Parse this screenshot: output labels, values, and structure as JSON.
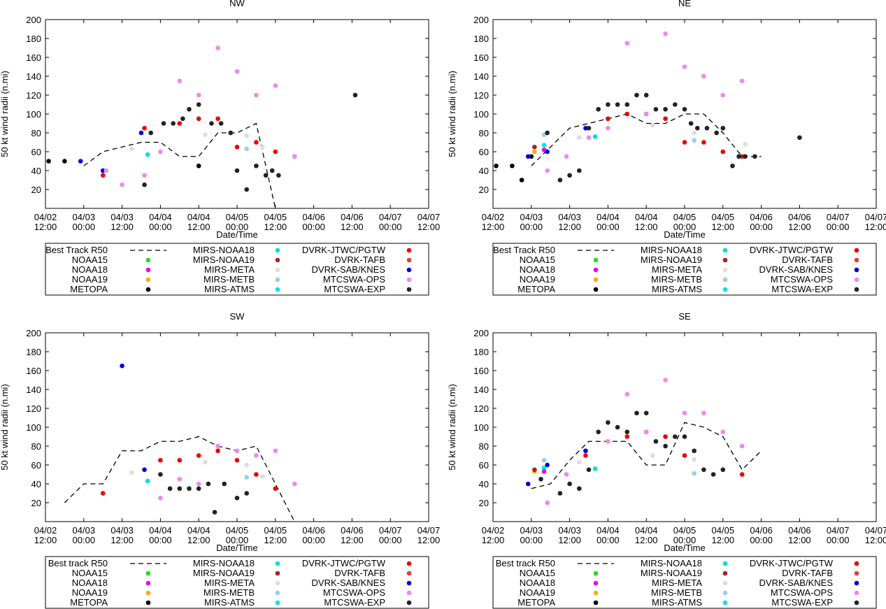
{
  "figure": {
    "x_ticks": [
      "04/02\n12:00",
      "04/03\n00:00",
      "04/03\n12:00",
      "04/04\n00:00",
      "04/04\n12:00",
      "04/05\n00:00",
      "04/05\n12:00",
      "04/06\n00:00",
      "04/06\n12:00",
      "04/07\n00:00",
      "04/07\n12:00"
    ],
    "y_ticks": [
      20,
      40,
      60,
      80,
      100,
      120,
      140,
      160,
      180,
      200
    ],
    "ylabel": "50 kt wind radii (n.mi)",
    "xlabel": "Date/Time"
  },
  "series_colors": {
    "NOAA15": "#22dd22",
    "NOAA18": "#ee00ee",
    "NOAA19": "#ffaa00",
    "METOPA": "#000000",
    "MIRS-NOAA18": "#00dddd",
    "MIRS-NOAA19": "#aa2222",
    "MIRS-META": "#dddddd",
    "MIRS-METB": "#99ccee",
    "MIRS-ATMS": "#00e5e5",
    "DVRK-JTWC/PGTW": "#ee0000",
    "DVRK-TAFB": "#e83a3a",
    "DVRK-SAB/KNES": "#0000dd",
    "MTCSWA-OPS": "#ee88ee",
    "MTCSWA-EXP": "#222222"
  },
  "chart_data": [
    {
      "type": "scatter",
      "title": "NW",
      "xlabel": "Date/Time",
      "ylabel": "50 kt wind radii (n.mi)",
      "x_unit": "hours since 04/02 12:00",
      "xlim": [
        0,
        120
      ],
      "ylim": [
        0,
        200
      ],
      "legend_entries": [
        "Best Track R50",
        "NOAA15",
        "NOAA18",
        "NOAA19",
        "METOPA",
        "MIRS-NOAA18",
        "MIRS-NOAA19",
        "MIRS-META",
        "MIRS-METB",
        "MIRS-ATMS",
        "DVRK-JTWC/PGTW",
        "DVRK-TAFB",
        "DVRK-SAB/KNES",
        "MTCSWA-OPS",
        "MTCSWA-EXP"
      ],
      "best_track": {
        "x": [
          12,
          18,
          24,
          30,
          36,
          42,
          48,
          54,
          60,
          66,
          72
        ],
        "y": [
          45,
          60,
          65,
          70,
          70,
          55,
          55,
          80,
          80,
          90,
          0
        ]
      },
      "series": [
        {
          "name": "METOPA",
          "x": [
            1,
            6,
            48
          ],
          "y": [
            50,
            50,
            45
          ]
        },
        {
          "name": "DVRK-SAB/KNES",
          "x": [
            11,
            18,
            30
          ],
          "y": [
            50,
            40,
            80
          ]
        },
        {
          "name": "DVRK-JTWC/PGTW",
          "x": [
            18,
            31,
            42,
            48,
            54,
            60,
            66,
            72,
            78
          ],
          "y": [
            35,
            85,
            90,
            95,
            95,
            65,
            70,
            60,
            55
          ]
        },
        {
          "name": "MTCSWA-OPS",
          "x": [
            19,
            24,
            31,
            36,
            42,
            48,
            54,
            60,
            66,
            72,
            78
          ],
          "y": [
            40,
            25,
            35,
            60,
            135,
            120,
            170,
            145,
            120,
            130,
            55
          ]
        },
        {
          "name": "MTCSWA-EXP",
          "x": [
            31,
            33,
            37,
            40,
            43,
            45,
            48,
            52,
            55,
            58,
            60,
            63,
            66,
            69,
            71,
            73
          ],
          "y": [
            25,
            80,
            90,
            90,
            95,
            105,
            110,
            90,
            90,
            80,
            40,
            20,
            45,
            35,
            40,
            35
          ]
        },
        {
          "name": "MIRS-NOAA18",
          "x": [
            32
          ],
          "y": [
            57
          ]
        },
        {
          "name": "MIRS-META",
          "x": [
            27,
            50,
            63,
            68
          ],
          "y": [
            63,
            78,
            77,
            65
          ]
        },
        {
          "name": "MIRS-METB",
          "x": [
            63
          ],
          "y": [
            63
          ]
        },
        {
          "name": "MTCSWA-EXP",
          "x": [
            97
          ],
          "y": [
            120
          ]
        }
      ]
    },
    {
      "type": "scatter",
      "title": "NE",
      "xlabel": "Date/Time",
      "ylabel": "50 kt wind radii (n.mi)",
      "x_unit": "hours since 04/02 12:00",
      "xlim": [
        0,
        120
      ],
      "ylim": [
        0,
        200
      ],
      "legend_entries": [
        "Best Track R50",
        "NOAA15",
        "NOAA18",
        "NOAA19",
        "METOPA",
        "MIRS-NOAA18",
        "MIRS-NOAA19",
        "MIRS-META",
        "MIRS-METB",
        "MIRS-ATMS",
        "DVRK-JTWC/PGTW",
        "DVRK-TAFB",
        "DVRK-SAB/KNES",
        "MTCSWA-OPS",
        "MTCSWA-EXP"
      ],
      "best_track": {
        "x": [
          12,
          18,
          24,
          30,
          36,
          42,
          48,
          54,
          60,
          66,
          72,
          78,
          84
        ],
        "y": [
          45,
          65,
          85,
          90,
          95,
          100,
          90,
          90,
          100,
          100,
          80,
          55,
          55
        ]
      },
      "series": [
        {
          "name": "METOPA",
          "x": [
            1,
            6,
            9,
            12
          ],
          "y": [
            45,
            45,
            30,
            55
          ]
        },
        {
          "name": "NOAA18",
          "x": [
            16
          ],
          "y": [
            62
          ]
        },
        {
          "name": "NOAA19",
          "x": [
            13
          ],
          "y": [
            60
          ]
        },
        {
          "name": "DVRK-SAB/KNES",
          "x": [
            11,
            17,
            29
          ],
          "y": [
            55,
            60,
            85
          ]
        },
        {
          "name": "MIRS-NOAA19",
          "x": [
            13
          ],
          "y": [
            65
          ]
        },
        {
          "name": "MIRS-ATMS",
          "x": [
            16
          ],
          "y": [
            67
          ]
        },
        {
          "name": "MIRS-METB",
          "x": [
            16,
            63
          ],
          "y": [
            78,
            72
          ]
        },
        {
          "name": "MIRS-META",
          "x": [
            27,
            50,
            63,
            79
          ],
          "y": [
            75,
            88,
            80,
            68
          ]
        },
        {
          "name": "DVRK-JTWC/PGTW",
          "x": [
            36,
            42,
            48,
            54,
            60,
            66,
            72,
            78
          ],
          "y": [
            95,
            100,
            100,
            95,
            70,
            70,
            60,
            55
          ]
        },
        {
          "name": "MTCSWA-OPS",
          "x": [
            17,
            23,
            30,
            36,
            42,
            48,
            54,
            60,
            66,
            72,
            78
          ],
          "y": [
            40,
            55,
            75,
            85,
            175,
            100,
            185,
            150,
            140,
            120,
            135
          ]
        },
        {
          "name": "MTCSWA-EXP",
          "x": [
            17,
            21,
            24,
            27,
            30,
            33,
            36,
            39,
            42,
            45,
            48,
            51,
            54,
            57,
            60,
            62,
            64,
            67,
            70,
            72,
            75,
            77,
            79,
            82
          ],
          "y": [
            80,
            30,
            35,
            40,
            85,
            105,
            110,
            110,
            110,
            120,
            120,
            105,
            105,
            110,
            105,
            90,
            85,
            85,
            80,
            85,
            45,
            55,
            55,
            55
          ]
        },
        {
          "name": "MIRS-NOAA18",
          "x": [
            32
          ],
          "y": [
            76
          ]
        },
        {
          "name": "MTCSWA-EXP",
          "x": [
            96
          ],
          "y": [
            75
          ]
        }
      ]
    },
    {
      "type": "scatter",
      "title": "SW",
      "xlabel": "Date/Time",
      "ylabel": "50 kt wind radii (n.mi)",
      "x_unit": "hours since 04/02 12:00",
      "xlim": [
        0,
        120
      ],
      "ylim": [
        0,
        200
      ],
      "legend_entries": [
        "Best track R50",
        "NOAA15",
        "NOAA18",
        "NOAA19",
        "METOPA",
        "MIRS-NOAA18",
        "MIRS-NOAA19",
        "MIRS-META",
        "MIRS-METB",
        "MIRS-ATMS",
        "DVRK-JTWC/PGTW",
        "DVRK-TAFB",
        "DVRK-SAB/KNES",
        "MTCSWA-OPS",
        "MTCSWA-EXP"
      ],
      "best_track": {
        "x": [
          6,
          12,
          18,
          24,
          30,
          36,
          42,
          48,
          54,
          60,
          66,
          72,
          78
        ],
        "y": [
          20,
          40,
          40,
          75,
          75,
          85,
          85,
          90,
          80,
          75,
          80,
          40,
          0
        ]
      },
      "series": [
        {
          "name": "DVRK-SAB/KNES",
          "x": [
            24,
            31
          ],
          "y": [
            165,
            55
          ]
        },
        {
          "name": "MIRS-NOAA18",
          "x": [
            32
          ],
          "y": [
            43
          ]
        },
        {
          "name": "MIRS-META",
          "x": [
            27,
            50,
            63,
            68
          ],
          "y": [
            52,
            63,
            60,
            48
          ]
        },
        {
          "name": "MIRS-METB",
          "x": [
            63
          ],
          "y": [
            47
          ]
        },
        {
          "name": "DVRK-JTWC/PGTW",
          "x": [
            18,
            36,
            42,
            48,
            54,
            60,
            66,
            72
          ],
          "y": [
            30,
            65,
            65,
            70,
            75,
            65,
            50,
            35
          ]
        },
        {
          "name": "MTCSWA-OPS",
          "x": [
            36,
            42,
            48,
            54,
            60,
            66,
            72,
            78
          ],
          "y": [
            25,
            45,
            40,
            80,
            75,
            70,
            75,
            40
          ]
        },
        {
          "name": "MTCSWA-EXP",
          "x": [
            36,
            39,
            42,
            45,
            48,
            51,
            53,
            56,
            60,
            63
          ],
          "y": [
            50,
            35,
            35,
            35,
            35,
            40,
            10,
            40,
            25,
            30
          ]
        }
      ]
    },
    {
      "type": "scatter",
      "title": "SE",
      "xlabel": "Date/Time",
      "ylabel": "50 kt wind radii (n.mi)",
      "x_unit": "hours since 04/02 12:00",
      "xlim": [
        0,
        120
      ],
      "ylim": [
        0,
        200
      ],
      "legend_entries": [
        "Best track R50",
        "NOAA15",
        "NOAA18",
        "NOAA19",
        "METOPA",
        "MIRS-NOAA18",
        "MIRS-NOAA19",
        "MIRS-META",
        "MIRS-METB",
        "MIRS-ATMS",
        "DVRK-JTWC/PGTW",
        "DVRK-TAFB",
        "DVRK-SAB/KNES",
        "MTCSWA-OPS",
        "MTCSWA-EXP"
      ],
      "best_track": {
        "x": [
          12,
          18,
          24,
          30,
          36,
          42,
          48,
          54,
          60,
          66,
          72,
          78,
          84
        ],
        "y": [
          35,
          40,
          65,
          85,
          85,
          85,
          60,
          60,
          105,
          100,
          90,
          55,
          75
        ]
      },
      "series": [
        {
          "name": "DVRK-SAB/KNES",
          "x": [
            11,
            17,
            29
          ],
          "y": [
            40,
            60,
            75
          ]
        },
        {
          "name": "NOAA19",
          "x": [
            13
          ],
          "y": [
            53
          ]
        },
        {
          "name": "MIRS-NOAA19",
          "x": [
            13
          ],
          "y": [
            55
          ]
        },
        {
          "name": "MIRS-ATMS",
          "x": [
            16
          ],
          "y": [
            57
          ]
        },
        {
          "name": "MIRS-METB",
          "x": [
            16,
            63
          ],
          "y": [
            65,
            51
          ]
        },
        {
          "name": "MIRS-META",
          "x": [
            27,
            50,
            63
          ],
          "y": [
            63,
            70,
            66
          ]
        },
        {
          "name": "MIRS-NOAA18",
          "x": [
            32
          ],
          "y": [
            56
          ]
        },
        {
          "name": "NOAA18",
          "x": [
            16
          ],
          "y": [
            53
          ]
        },
        {
          "name": "DVRK-JTWC/PGTW",
          "x": [
            29,
            42,
            48,
            54,
            60,
            78
          ],
          "y": [
            70,
            90,
            95,
            90,
            70,
            50
          ]
        },
        {
          "name": "MTCSWA-OPS",
          "x": [
            17,
            23,
            36,
            42,
            48,
            54,
            60,
            66,
            72,
            78
          ],
          "y": [
            20,
            50,
            85,
            135,
            95,
            150,
            115,
            115,
            95,
            80
          ]
        },
        {
          "name": "MTCSWA-EXP",
          "x": [
            15,
            21,
            24,
            27,
            30,
            33,
            36,
            39,
            42,
            45,
            48,
            51,
            54,
            57,
            60,
            63,
            66,
            69,
            72
          ],
          "y": [
            45,
            30,
            40,
            35,
            55,
            95,
            105,
            100,
            95,
            115,
            115,
            85,
            80,
            90,
            90,
            75,
            55,
            50,
            55
          ]
        }
      ]
    }
  ]
}
